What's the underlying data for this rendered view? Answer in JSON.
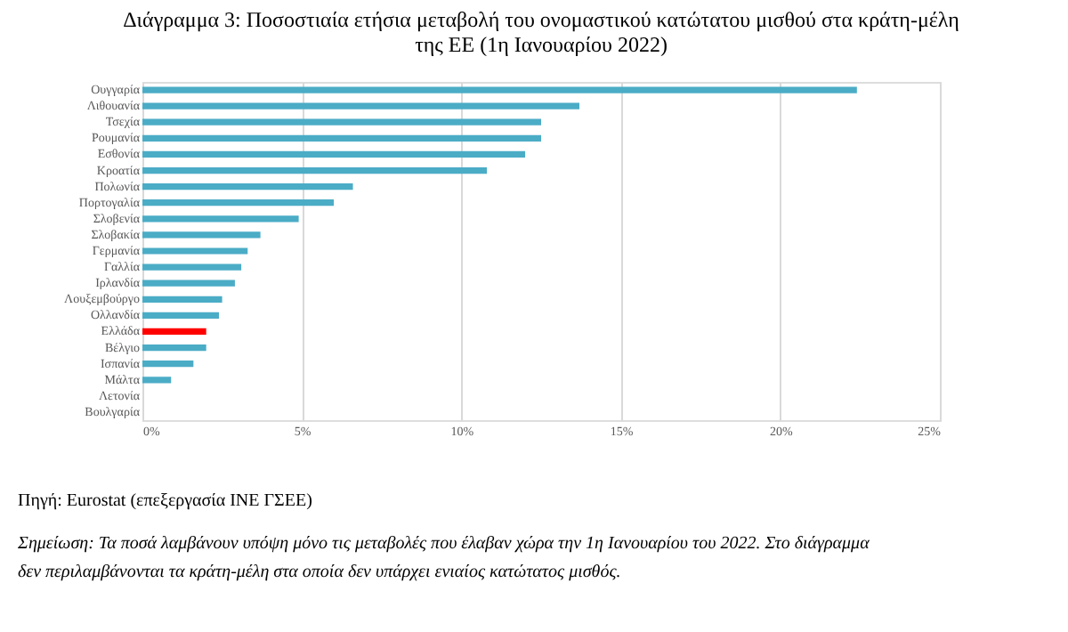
{
  "chart_data": {
    "type": "bar",
    "orientation": "horizontal",
    "title": "Διάγραμμα 3: Ποσοστιαία ετήσια μεταβολή του ονομαστικού κατώτατου μισθού στα κράτη-μέλη της ΕΕ (1η Ιανουαρίου 2022)",
    "categories": [
      "Ουγγαρία",
      "Λιθουανία",
      "Τσεχία",
      "Ρουμανία",
      "Εσθονία",
      "Κροατία",
      "Πολωνία",
      "Πορτογαλία",
      "Σλοβενία",
      "Σλοβακία",
      "Γερμανία",
      "Γαλλία",
      "Ιρλανδία",
      "Λουξεμβούργο",
      "Ολλανδία",
      "Ελλάδα",
      "Βέλγιο",
      "Ισπανία",
      "Μάλτα",
      "Λετονία",
      "Βουλγαρία"
    ],
    "values": [
      22.4,
      13.7,
      12.5,
      12.5,
      12.0,
      10.8,
      6.6,
      6.0,
      4.9,
      3.7,
      3.3,
      3.1,
      2.9,
      2.5,
      2.4,
      2.0,
      2.0,
      1.6,
      0.9,
      0,
      0
    ],
    "colors": [
      "#4bacc6",
      "#4bacc6",
      "#4bacc6",
      "#4bacc6",
      "#4bacc6",
      "#4bacc6",
      "#4bacc6",
      "#4bacc6",
      "#4bacc6",
      "#4bacc6",
      "#4bacc6",
      "#4bacc6",
      "#4bacc6",
      "#4bacc6",
      "#4bacc6",
      "#ff0000",
      "#4bacc6",
      "#4bacc6",
      "#4bacc6",
      "#4bacc6",
      "#4bacc6"
    ],
    "xlim": [
      0,
      25
    ],
    "xticks": [
      {
        "value": 0,
        "label": "0%"
      },
      {
        "value": 5,
        "label": "5%"
      },
      {
        "value": 10,
        "label": "10%"
      },
      {
        "value": 15,
        "label": "15%"
      },
      {
        "value": 20,
        "label": "20%"
      },
      {
        "value": 25,
        "label": "25%"
      }
    ],
    "grid": "x",
    "annotations": [
      "Πηγή: Eurostat (επεξεργασία ΙΝΕ ΓΣΕΕ)",
      "Σημείωση: Τα ποσά λαμβάνουν υπόψη μόνο τις μεταβολές που έλαβαν χώρα την 1η Ιανουαρίου του 2022. Στο διάγραμμα δεν περιλαμβάνονται τα κράτη-μέλη στα οποία δεν υπάρχει ενιαίος κατώτατος μισθός."
    ]
  }
}
